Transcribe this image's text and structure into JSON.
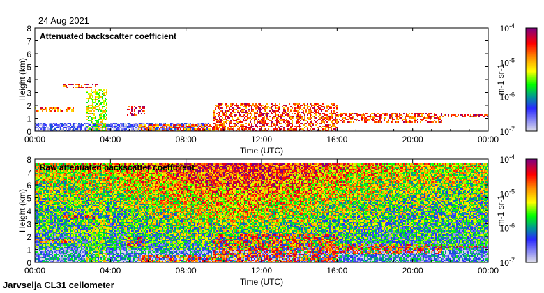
{
  "header": {
    "date": "24 Aug 2021"
  },
  "footer": {
    "instrument": "Jarvselja CL31 ceilometer"
  },
  "colors": {
    "low": "#dcdcea",
    "blue": "#0000ff",
    "green": "#00ff00",
    "yellow": "#ffff00",
    "red": "#ff0000",
    "high": "#800080"
  },
  "chart_data": [
    {
      "type": "heatmap",
      "title": "Attenuated backscatter coefficient",
      "xlabel": "Time (UTC)",
      "ylabel": "Height (km)",
      "xlim": [
        0,
        24
      ],
      "ylim": [
        0,
        8
      ],
      "xticks": [
        "00:00",
        "04:00",
        "08:00",
        "12:00",
        "16:00",
        "20:00",
        "00:00"
      ],
      "yticks": [
        "0",
        "1",
        "2",
        "3",
        "4",
        "5",
        "6",
        "7",
        "8"
      ],
      "colorbar": {
        "label": "m-1 sr-1",
        "ticks": [
          "10-7",
          "10-6",
          "10-5",
          "10-4"
        ],
        "scale": "log",
        "range": [
          1e-07,
          0.0001
        ]
      },
      "features": [
        {
          "t": [
            0,
            9.2
          ],
          "h": [
            0,
            0.6
          ],
          "level": 0.12
        },
        {
          "t": [
            0,
            2.0
          ],
          "h": [
            1.5,
            1.85
          ],
          "level": 0.75
        },
        {
          "t": [
            1.5,
            3.3
          ],
          "h": [
            3.4,
            3.7
          ],
          "level": 0.85
        },
        {
          "t": [
            2.8,
            3.8
          ],
          "h": [
            0,
            3.2
          ],
          "level": 0.55
        },
        {
          "t": [
            4.9,
            5.8
          ],
          "h": [
            1.2,
            1.9
          ],
          "level": 0.85
        },
        {
          "t": [
            5.5,
            10.0
          ],
          "h": [
            0,
            0.5
          ],
          "level": 0.75
        },
        {
          "t": [
            9.5,
            16.0
          ],
          "h": [
            0,
            2.2
          ],
          "level": 0.8
        },
        {
          "t": [
            15.5,
            21.5
          ],
          "h": [
            0.6,
            1.4
          ],
          "level": 0.8
        },
        {
          "t": [
            21.5,
            24
          ],
          "h": [
            1.1,
            1.3
          ],
          "level": 0.85
        }
      ]
    },
    {
      "type": "heatmap",
      "title": "Raw attenuated backscatter coefficient",
      "xlabel": "Time (UTC)",
      "ylabel": "Height (km)",
      "xlim": [
        0,
        24
      ],
      "ylim": [
        0,
        8
      ],
      "xticks": [
        "00:00",
        "04:00",
        "08:00",
        "12:00",
        "16:00",
        "20:00",
        "00:00"
      ],
      "yticks": [
        "0",
        "1",
        "2",
        "3",
        "4",
        "5",
        "6",
        "7",
        "8"
      ],
      "colorbar": {
        "label": "m-1 sr-1",
        "ticks": [
          "10-7",
          "10-6",
          "10-5",
          "10-4"
        ],
        "scale": "log",
        "range": [
          1e-07,
          0.0001
        ]
      }
    }
  ]
}
